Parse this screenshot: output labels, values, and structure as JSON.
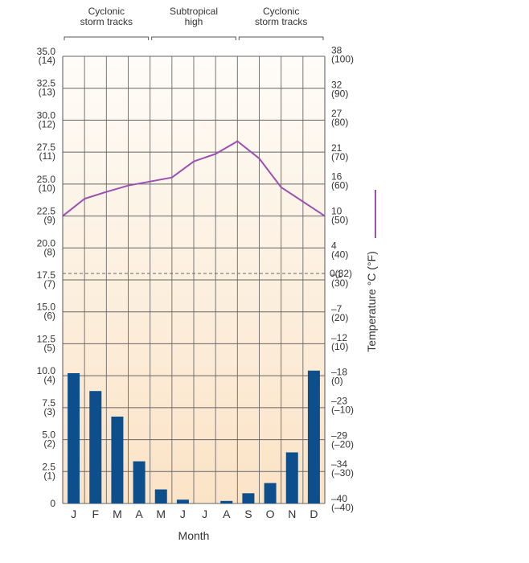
{
  "chart_data": {
    "type": "bar+line",
    "categories": [
      "J",
      "F",
      "M",
      "A",
      "M",
      "J",
      "J",
      "A",
      "S",
      "O",
      "N",
      "D"
    ],
    "xlabel": "Month",
    "precip": {
      "type": "bar",
      "color": "#0d4f8c",
      "ylim": [
        0,
        35
      ],
      "tick_labels": [
        {
          "v": 35.0,
          "a": "35.0",
          "b": "(14)"
        },
        {
          "v": 32.5,
          "a": "32.5",
          "b": "(13)"
        },
        {
          "v": 30.0,
          "a": "30.0",
          "b": "(12)"
        },
        {
          "v": 27.5,
          "a": "27.5",
          "b": "(11)"
        },
        {
          "v": 25.0,
          "a": "25.0",
          "b": "(10)"
        },
        {
          "v": 22.5,
          "a": "22.5",
          "b": "(9)"
        },
        {
          "v": 20.0,
          "a": "20.0",
          "b": "(8)"
        },
        {
          "v": 17.5,
          "a": "17.5",
          "b": "(7)"
        },
        {
          "v": 15.0,
          "a": "15.0",
          "b": "(6)"
        },
        {
          "v": 12.5,
          "a": "12.5",
          "b": "(5)"
        },
        {
          "v": 10.0,
          "a": "10.0",
          "b": "(4)"
        },
        {
          "v": 7.5,
          "a": "7.5",
          "b": "(3)"
        },
        {
          "v": 5.0,
          "a": "5.0",
          "b": "(2)"
        },
        {
          "v": 2.5,
          "a": "2.5",
          "b": "(1)"
        },
        {
          "v": 0,
          "a": "0",
          "b": ""
        }
      ],
      "values": [
        10.2,
        8.8,
        6.8,
        3.3,
        1.1,
        0.3,
        0.0,
        0.2,
        0.8,
        1.6,
        4.0,
        10.4
      ]
    },
    "temperature": {
      "type": "line",
      "color": "#9b4fb0",
      "ylabel": "Temperature °C (°F)",
      "ylim": [
        -40,
        38
      ],
      "freezing_c": 0,
      "tick_labels": [
        {
          "v": 38,
          "a": "38",
          "b": "(100)"
        },
        {
          "v": 32,
          "a": "32",
          "b": "(90)"
        },
        {
          "v": 27,
          "a": "27",
          "b": "(80)"
        },
        {
          "v": 21,
          "a": "21",
          "b": "(70)"
        },
        {
          "v": 16,
          "a": "16",
          "b": "(60)"
        },
        {
          "v": 10,
          "a": "10",
          "b": "(50)"
        },
        {
          "v": 4,
          "a": "4",
          "b": "(40)"
        },
        {
          "v": 0,
          "a": "0(32)",
          "b": ""
        },
        {
          "v": -1,
          "a": "–1",
          "b": "(30)"
        },
        {
          "v": -7,
          "a": "–7",
          "b": "(20)"
        },
        {
          "v": -12,
          "a": "–12",
          "b": "(10)"
        },
        {
          "v": -18,
          "a": "–18",
          "b": "(0)"
        },
        {
          "v": -23,
          "a": "–23",
          "b": "(–10)"
        },
        {
          "v": -29,
          "a": "–29",
          "b": "(–20)"
        },
        {
          "v": -34,
          "a": "–34",
          "b": "(–30)"
        },
        {
          "v": -40,
          "a": "–40",
          "b": "(–40)"
        }
      ],
      "values": [
        10,
        13,
        14.2,
        15.3,
        16,
        16.7,
        19.5,
        20.8,
        23,
        20,
        15,
        10
      ]
    },
    "bands": [
      {
        "line1": "Cyclonic",
        "line2": "storm tracks",
        "start": 0,
        "end": 4
      },
      {
        "line1": "Subtropical",
        "line2": "high",
        "start": 4,
        "end": 8
      },
      {
        "line1": "Cyclonic",
        "line2": "storm tracks",
        "start": 8,
        "end": 12
      }
    ]
  }
}
